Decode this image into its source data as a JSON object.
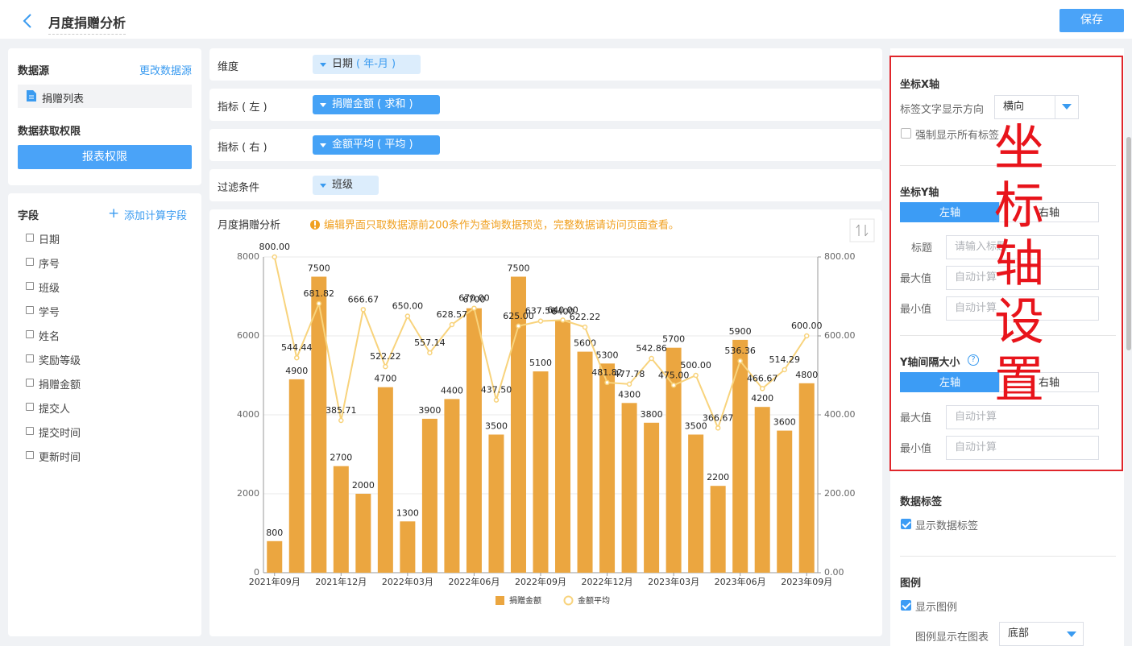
{
  "header": {
    "title": "月度捐赠分析",
    "save": "保存"
  },
  "left": {
    "datasource_title": "数据源",
    "change_datasource": "更改数据源",
    "table_name": "捐赠列表",
    "permission_title": "数据获取权限",
    "permission_button": "报表权限",
    "fields_title": "字段",
    "add_field": "添加计算字段",
    "fields": [
      "日期",
      "序号",
      "班级",
      "学号",
      "姓名",
      "奖励等级",
      "捐赠金额",
      "提交人",
      "提交时间",
      "更新时间"
    ]
  },
  "config": {
    "rows": [
      {
        "label": "维度",
        "chip": "日期",
        "chip_suffix": "( 年-月 )"
      },
      {
        "label": "指标 ( 左 )",
        "chip": "捐赠金额 ( 求和 )"
      },
      {
        "label": "指标 ( 右 )",
        "chip": "金额平均 ( 平均 )"
      },
      {
        "label": "过滤条件",
        "chip": "班级"
      }
    ],
    "notice": "编辑界面只取数据源前200条作为查询数据预览，完整数据请访问页面查看。"
  },
  "settings": {
    "x_axis_title": "坐标X轴",
    "label_direction": "标签文字显示方向",
    "label_direction_value": "横向",
    "force_labels": "强制显示所有标签",
    "y_axis_title": "坐标Y轴",
    "tab_left": "左轴",
    "tab_right": "右轴",
    "axis_name": "标题",
    "axis_name_placeholder": "请输入标题",
    "max": "最大值",
    "min": "最小值",
    "auto": "自动计算",
    "interval_title": "Y轴间隔大小",
    "data_labels_title": "数据标签",
    "show_data_labels": "显示数据标签",
    "legend_title": "图例",
    "show_legend": "显示图例",
    "legend_position": "图例显示在图表",
    "legend_position_value": "底部"
  },
  "annotation": "坐标轴设置",
  "chart_data": {
    "type": "combo",
    "title": "月度捐赠分析",
    "categories": [
      "2021年09月",
      null,
      null,
      "2021年12月",
      null,
      null,
      "2022年03月",
      null,
      null,
      "2022年06月",
      null,
      null,
      "2022年09月",
      null,
      null,
      "2022年12月",
      null,
      null,
      "2023年03月",
      null,
      null,
      "2023年06月",
      null,
      null,
      "2023年09月"
    ],
    "series": [
      {
        "name": "捐赠金额",
        "type": "bar",
        "color": "#eba640",
        "values": [
          800,
          4900,
          7500,
          2700,
          2000,
          4700,
          1300,
          3900,
          4400,
          6700,
          3500,
          7500,
          5100,
          6400,
          5600,
          5300,
          4300,
          3800,
          5700,
          3500,
          2200,
          5900,
          4200,
          3600,
          4800
        ]
      },
      {
        "name": "金额平均",
        "type": "line",
        "axis": "y2",
        "color": "#f8d37c",
        "values": [
          800,
          544.44,
          681.82,
          385.71,
          666.67,
          522.22,
          650,
          557.14,
          628.57,
          670,
          437.5,
          625,
          637.5,
          640,
          622.22,
          481.82,
          477.78,
          542.86,
          475,
          500,
          366.67,
          536.36,
          466.67,
          514.29,
          600
        ],
        "value_labels": [
          "800.00",
          "544.44",
          "681.82",
          "385.71",
          "666.67",
          "522.22",
          "650.00",
          "557.14",
          "628.57",
          "670.00",
          "437.50",
          "625.00",
          "637.50",
          "640.00",
          "622.22",
          "481.82",
          "477.78",
          "542.86",
          "475.00",
          "500.00",
          "366.67",
          "536.36",
          "466.67",
          "514.29",
          "600.00"
        ]
      }
    ],
    "ylim": [
      0,
      8000
    ],
    "yticks": [
      0,
      2000,
      4000,
      6000,
      8000
    ],
    "y2lim": [
      0,
      800
    ],
    "y2ticks": [
      {
        "value": 0,
        "label": "0.00"
      },
      {
        "value": 200,
        "label": "200.00"
      },
      {
        "value": 400,
        "label": "400.00"
      },
      {
        "value": 600,
        "label": "600.00"
      },
      {
        "value": 800,
        "label": "800.00"
      }
    ],
    "grid": true,
    "legend": "bottom"
  }
}
